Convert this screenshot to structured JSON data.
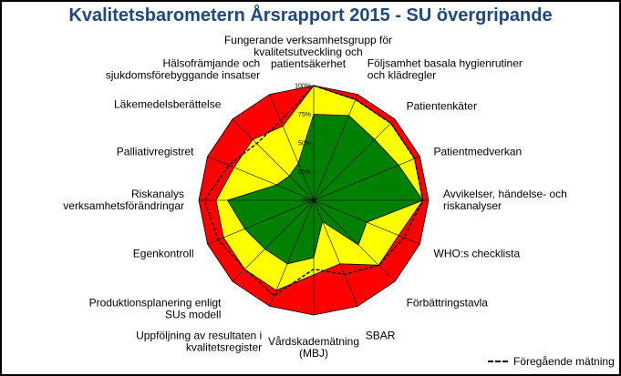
{
  "chart_data": {
    "type": "radar",
    "title": "Kvalitetsbarometern Årsrapport 2015 - SU övergripande",
    "categories": [
      [
        "Fungerande verksamhetsgrupp för",
        "kvalitetsutveckling och",
        "patientsäkerhet"
      ],
      [
        "Följsamhet basala hygienrutiner",
        "och klädregler"
      ],
      [
        "Patientenkäter"
      ],
      [
        "Patientmedverkan"
      ],
      [
        "Avvikelser, händelse- och",
        "riskanalyser"
      ],
      [
        "WHO:s checklista"
      ],
      [
        "Förbättringstavla"
      ],
      [
        "SBAR"
      ],
      [
        "Vårdskademätning",
        "(MBJ)"
      ],
      [
        "Uppföljning av resultaten i",
        "kvalitetsregister"
      ],
      [
        "Produktionsplanering enligt",
        "SUs modell"
      ],
      [
        "Egenkontroll"
      ],
      [
        "Riskanalys",
        "verksamhetsförändringar"
      ],
      [
        "Palliativregistret"
      ],
      [
        "Läkemedelsberättelse"
      ],
      [
        "Hälsofrämjande och",
        "sjukdomsförebyggande insatser"
      ]
    ],
    "scale_ticks": [
      "0%",
      "25%",
      "50%",
      "75%",
      "100%"
    ],
    "series": [
      {
        "name": "Röd",
        "color": "#ff0000",
        "values": [
          100,
          100,
          100,
          100,
          100,
          100,
          100,
          100,
          100,
          100,
          100,
          100,
          100,
          100,
          100,
          100
        ]
      },
      {
        "name": "Gul",
        "color": "#ffff00",
        "values": [
          100,
          95,
          95,
          95,
          95,
          80,
          80,
          60,
          65,
          85,
          85,
          85,
          85,
          75,
          75,
          70
        ]
      },
      {
        "name": "Grön",
        "color": "#008000",
        "values": [
          75,
          80,
          75,
          80,
          95,
          50,
          55,
          20,
          50,
          60,
          60,
          65,
          75,
          35,
          30,
          35
        ]
      }
    ],
    "previous": {
      "name": "Föregående mätning",
      "values": [
        100,
        95,
        95,
        95,
        95,
        85,
        80,
        70,
        60,
        90,
        85,
        90,
        95,
        80,
        70,
        75
      ]
    }
  },
  "legend": {
    "previous_label": "Föregående mätning"
  }
}
